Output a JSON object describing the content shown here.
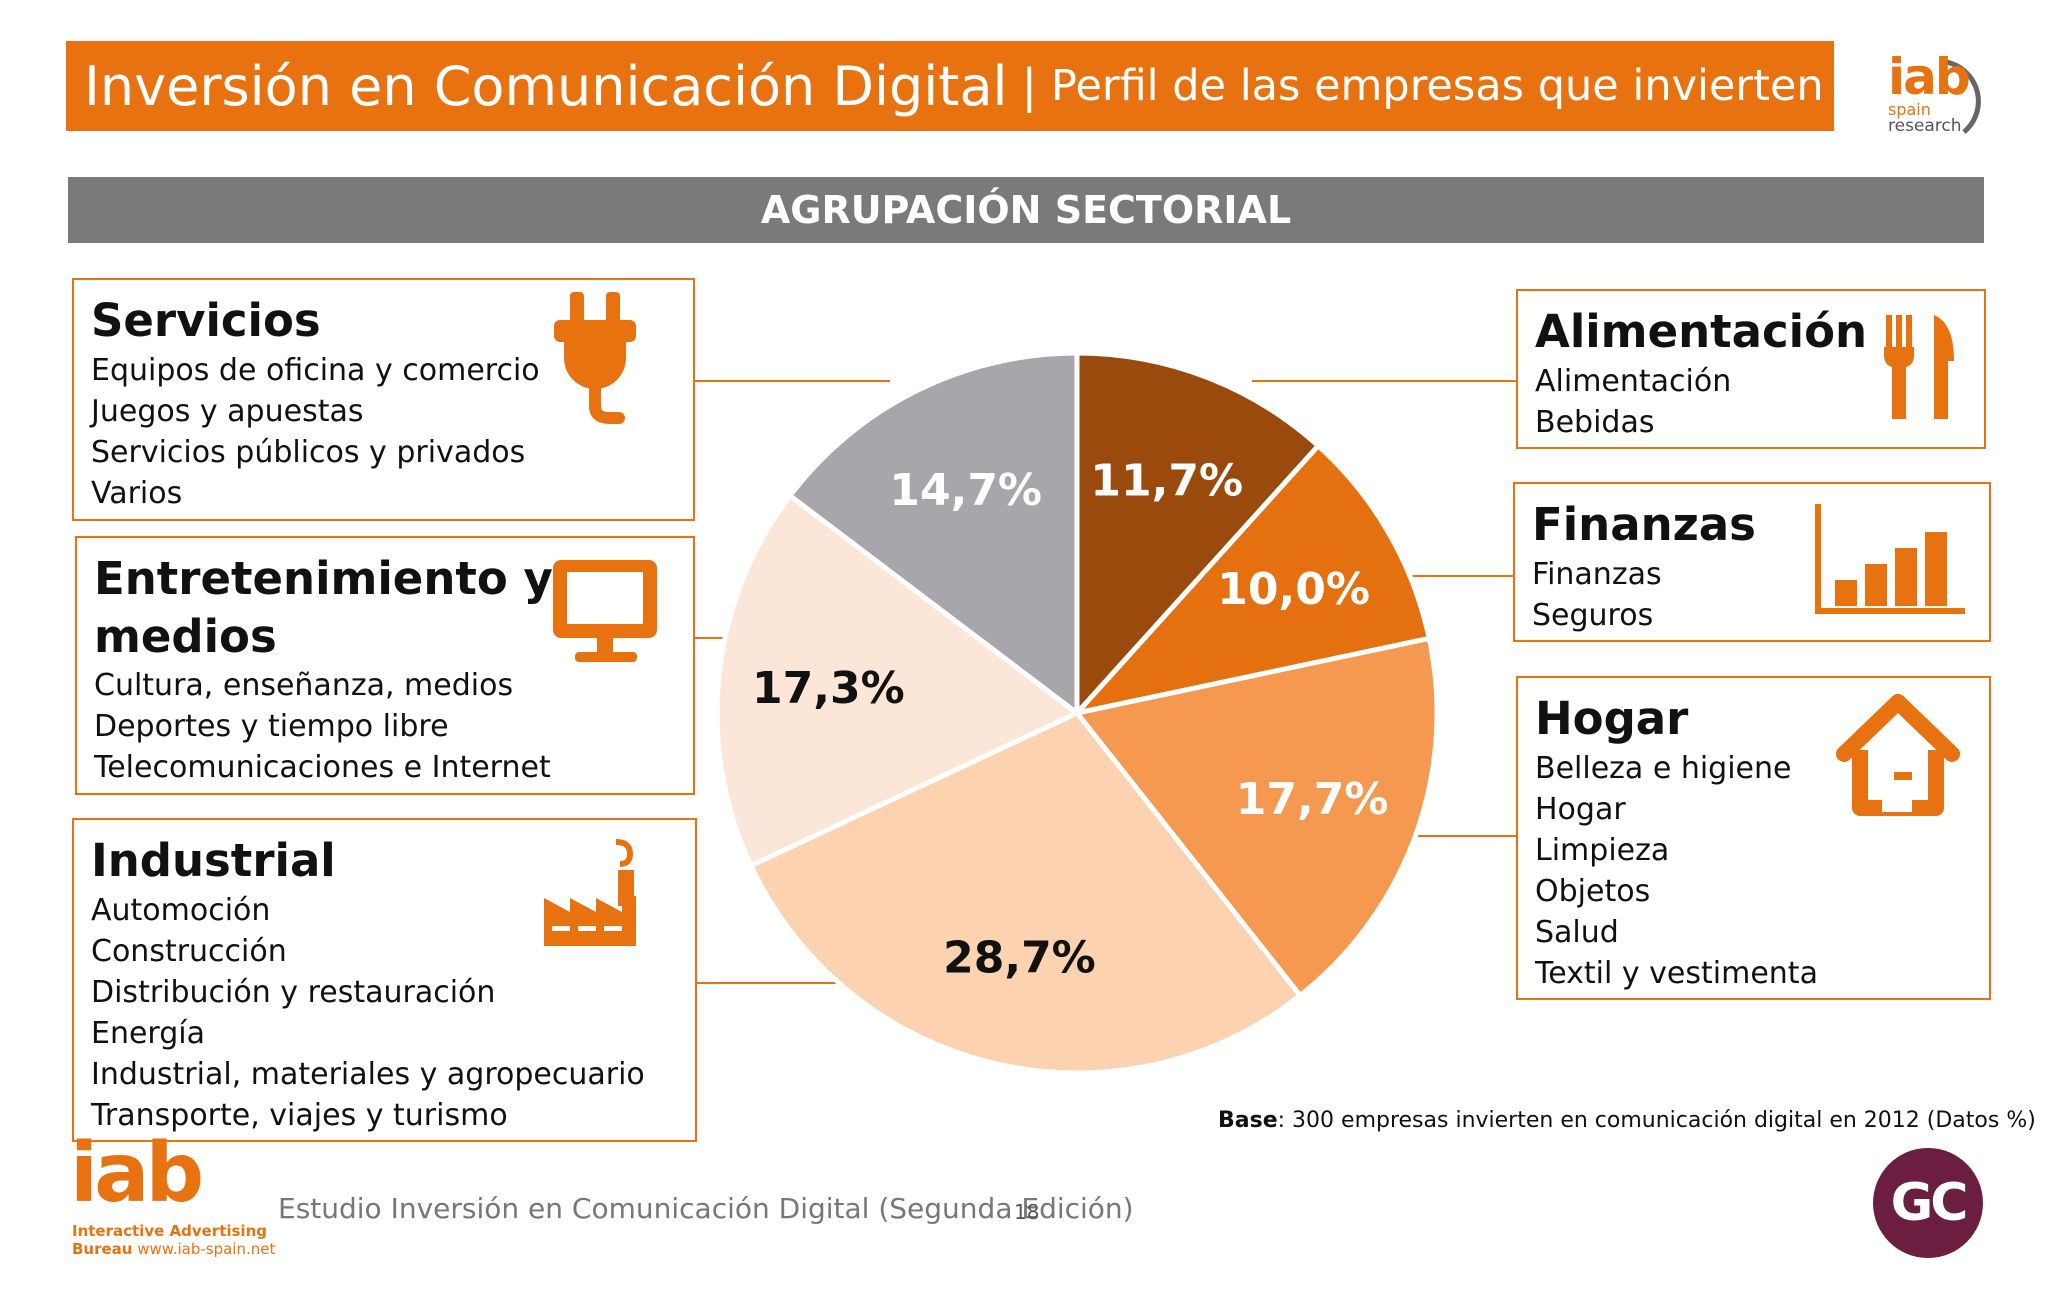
{
  "header": {
    "title": "Inversión en Comunicación Digital",
    "separator": "|",
    "subtitle": "Perfil de las empresas que invierten"
  },
  "logo_top": {
    "brand": "iab",
    "line1": "spain",
    "line2": "research"
  },
  "section_title": "AGRUPACIÓN SECTORIAL",
  "categories": {
    "servicios": {
      "title": "Servicios",
      "items": [
        "Equipos de oficina y comercio",
        "Juegos y apuestas",
        "Servicios públicos y privados",
        "Varios"
      ],
      "icon": "plug-icon"
    },
    "entretenimiento": {
      "title_line1": "Entretenimiento y",
      "title_line2": "medios",
      "items": [
        "Cultura, enseñanza, medios",
        "Deportes y tiempo libre",
        "Telecomunicaciones e Internet"
      ],
      "icon": "monitor-icon"
    },
    "industrial": {
      "title": "Industrial",
      "items": [
        "Automoción",
        "Construcción",
        "Distribución y restauración",
        "Energía",
        "Industrial, materiales y agropecuario",
        "Transporte, viajes y turismo"
      ],
      "icon": "factory-icon"
    },
    "alimentacion": {
      "title": "Alimentación",
      "items": [
        "Alimentación",
        "Bebidas"
      ],
      "icon": "fork-knife-icon"
    },
    "finanzas": {
      "title": "Finanzas",
      "items": [
        "Finanzas",
        "Seguros"
      ],
      "icon": "bar-chart-icon"
    },
    "hogar": {
      "title": "Hogar",
      "items": [
        "Belleza e higiene",
        "Hogar",
        "Limpieza",
        "Objetos",
        "Salud",
        "Textil y vestimenta"
      ],
      "icon": "house-icon"
    }
  },
  "chart_data": {
    "type": "pie",
    "title": "",
    "categories": [
      "Alimentación",
      "Finanzas",
      "Hogar",
      "Industrial",
      "Entretenimiento y medios",
      "Servicios"
    ],
    "values": [
      11.7,
      10.0,
      17.7,
      28.7,
      17.3,
      14.7
    ],
    "labels": [
      "11,7%",
      "10,0%",
      "17,7%",
      "28,7%",
      "17,3%",
      "14,7%"
    ],
    "colors": [
      "#9a4a0c",
      "#e4700f",
      "#f4994f",
      "#fcd2b0",
      "#fce6d8",
      "#a8a6aa"
    ],
    "label_colors": [
      "#ffffff",
      "#ffffff",
      "#ffffff",
      "#111111",
      "#111111",
      "#ffffff"
    ],
    "start_angle_deg": 0,
    "direction": "clockwise"
  },
  "base_note": {
    "bold": "Base",
    "text": ": 300 empresas invierten en comunicación digital en 2012 (Datos %)"
  },
  "footer": {
    "brand": "iab",
    "line1": "Interactive Advertising",
    "line2_bold": "Bureau",
    "line2_url": "www.iab-spain.net",
    "study": "Estudio Inversión en Comunicación Digital (Segunda Edición)",
    "page": "18",
    "partner_logo": "GC"
  }
}
